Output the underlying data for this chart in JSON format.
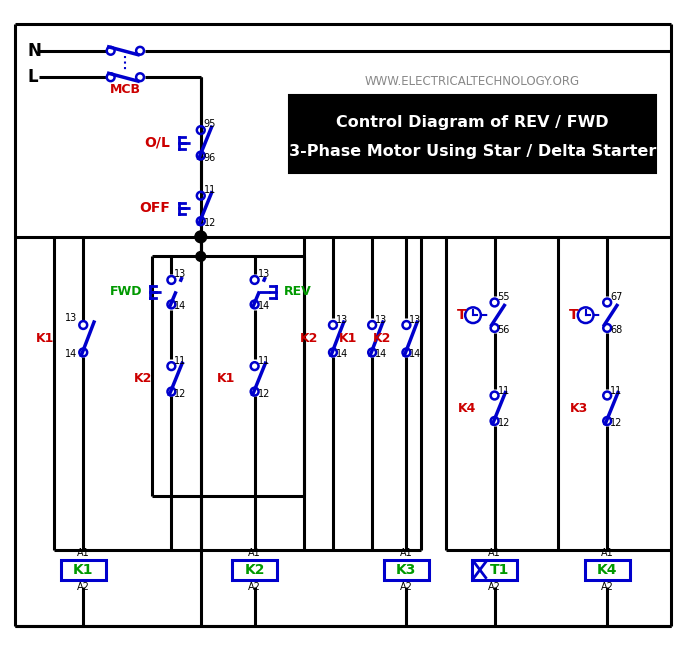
{
  "title_line1": "Control Diagram of REV / FWD",
  "title_line2": "3-Phase Motor Using Star / Delta Starter",
  "website": "WWW.ELECTRICALTECHNOLOGY.ORG",
  "bg_color": "#ffffff",
  "line_color": "#000000",
  "blue": "#0000cc",
  "red": "#cc0000",
  "green": "#009900",
  "title_bg": "#000000",
  "title_fg": "#ffffff",
  "gray": "#888888"
}
